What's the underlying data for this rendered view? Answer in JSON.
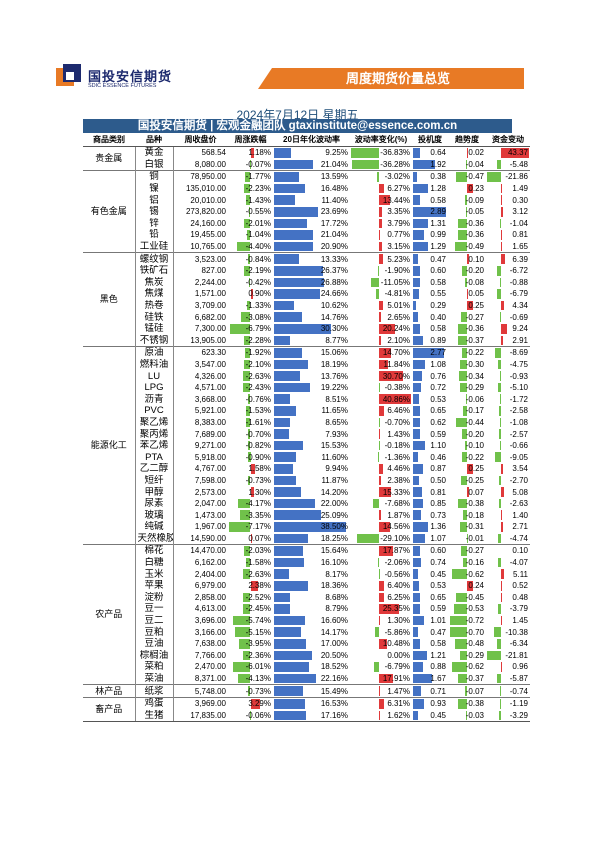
{
  "header": {
    "logo_cn": "国投安信期货",
    "logo_en": "SDIC ESSENCE FUTURES",
    "banner": "周度期货价量总览",
    "date": "2024年7月12日 星期五",
    "subtitle": "国投安信期货 | 宏观金融团队 gtaxinstitute@essence.com.cn"
  },
  "columns": [
    "商品类别",
    "品种",
    "周收盘价",
    "周涨跌幅",
    "20日年化波动率",
    "波动率变化(%)",
    "投机度",
    "趋势度",
    "资金变动"
  ],
  "rows": [
    {
      "cat": "贵金属",
      "name": "黄金",
      "close": "568.54",
      "chg": "1.18%",
      "chgv": 1.18,
      "vol": "9.25%",
      "volv": 9.25,
      "vchg": "-36.83%",
      "vchgv": -36.83,
      "spec": "0.64",
      "specv": 0.64,
      "trend": "0.02",
      "trendv": 0.02,
      "flow": "43.37",
      "flowv": 43.37,
      "grp": true
    },
    {
      "cat": "",
      "name": "白银",
      "close": "8,080.00",
      "chg": "-0.07%",
      "chgv": -0.07,
      "vol": "21.04%",
      "volv": 21.04,
      "vchg": "-36.28%",
      "vchgv": -36.28,
      "spec": "1.92",
      "specv": 1.92,
      "trend": "-0.04",
      "trendv": -0.04,
      "flow": "-5.48",
      "flowv": -5.48
    },
    {
      "cat": "有色金属",
      "name": "铜",
      "close": "78,950.00",
      "chg": "-1.77%",
      "chgv": -1.77,
      "vol": "13.59%",
      "volv": 13.59,
      "vchg": "-3.02%",
      "vchgv": -3.02,
      "spec": "0.38",
      "specv": 0.38,
      "trend": "-0.47",
      "trendv": -0.47,
      "flow": "-21.86",
      "flowv": -21.86,
      "grp": true
    },
    {
      "cat": "",
      "name": "镍",
      "close": "135,010.00",
      "chg": "-2.23%",
      "chgv": -2.23,
      "vol": "16.48%",
      "volv": 16.48,
      "vchg": "6.27%",
      "vchgv": 6.27,
      "spec": "1.28",
      "specv": 1.28,
      "trend": "0.23",
      "trendv": 0.23,
      "flow": "1.49",
      "flowv": 1.49
    },
    {
      "cat": "",
      "name": "铝",
      "close": "20,010.00",
      "chg": "-1.43%",
      "chgv": -1.43,
      "vol": "11.40%",
      "volv": 11.4,
      "vchg": "13.44%",
      "vchgv": 13.44,
      "spec": "0.58",
      "specv": 0.58,
      "trend": "-0.09",
      "trendv": -0.09,
      "flow": "0.30",
      "flowv": 0.3
    },
    {
      "cat": "",
      "name": "锡",
      "close": "273,820.00",
      "chg": "-0.55%",
      "chgv": -0.55,
      "vol": "23.69%",
      "volv": 23.69,
      "vchg": "3.35%",
      "vchgv": 3.35,
      "spec": "2.89",
      "specv": 2.89,
      "trend": "-0.05",
      "trendv": -0.05,
      "flow": "3.12",
      "flowv": 3.12
    },
    {
      "cat": "",
      "name": "锌",
      "close": "24,160.00",
      "chg": "-2.01%",
      "chgv": -2.01,
      "vol": "17.72%",
      "volv": 17.72,
      "vchg": "3.79%",
      "vchgv": 3.79,
      "spec": "1.31",
      "specv": 1.31,
      "trend": "-0.36",
      "trendv": -0.36,
      "flow": "-1.04",
      "flowv": -1.04
    },
    {
      "cat": "",
      "name": "铅",
      "close": "19,455.00",
      "chg": "-1.04%",
      "chgv": -1.04,
      "vol": "21.04%",
      "volv": 21.04,
      "vchg": "0.77%",
      "vchgv": 0.77,
      "spec": "0.99",
      "specv": 0.99,
      "trend": "-0.36",
      "trendv": -0.36,
      "flow": "0.81",
      "flowv": 0.81
    },
    {
      "cat": "",
      "name": "工业硅",
      "close": "10,765.00",
      "chg": "-4.40%",
      "chgv": -4.4,
      "vol": "20.90%",
      "volv": 20.9,
      "vchg": "3.15%",
      "vchgv": 3.15,
      "spec": "1.29",
      "specv": 1.29,
      "trend": "-0.49",
      "trendv": -0.49,
      "flow": "1.65",
      "flowv": 1.65
    },
    {
      "cat": "黑色",
      "name": "螺纹钢",
      "close": "3,523.00",
      "chg": "-0.84%",
      "chgv": -0.84,
      "vol": "13.33%",
      "volv": 13.33,
      "vchg": "5.23%",
      "vchgv": 5.23,
      "spec": "0.47",
      "specv": 0.47,
      "trend": "0.10",
      "trendv": 0.1,
      "flow": "6.39",
      "flowv": 6.39,
      "grp": true
    },
    {
      "cat": "",
      "name": "铁矿石",
      "close": "827.00",
      "chg": "-2.19%",
      "chgv": -2.19,
      "vol": "26.37%",
      "volv": 26.37,
      "vchg": "-1.90%",
      "vchgv": -1.9,
      "spec": "0.60",
      "specv": 0.6,
      "trend": "-0.20",
      "trendv": -0.2,
      "flow": "-6.72",
      "flowv": -6.72
    },
    {
      "cat": "",
      "name": "焦炭",
      "close": "2,244.00",
      "chg": "-0.42%",
      "chgv": -0.42,
      "vol": "26.88%",
      "volv": 26.88,
      "vchg": "-11.05%",
      "vchgv": -11.05,
      "spec": "0.58",
      "specv": 0.58,
      "trend": "-0.08",
      "trendv": -0.08,
      "flow": "-0.88",
      "flowv": -0.88
    },
    {
      "cat": "",
      "name": "焦煤",
      "close": "1,571.00",
      "chg": "0.90%",
      "chgv": 0.9,
      "vol": "24.66%",
      "volv": 24.66,
      "vchg": "-4.81%",
      "vchgv": -4.81,
      "spec": "0.55",
      "specv": 0.55,
      "trend": "0.05",
      "trendv": 0.05,
      "flow": "-6.79",
      "flowv": -6.79
    },
    {
      "cat": "",
      "name": "热卷",
      "close": "3,709.00",
      "chg": "-1.33%",
      "chgv": -1.33,
      "vol": "10.62%",
      "volv": 10.62,
      "vchg": "5.01%",
      "vchgv": 5.01,
      "spec": "0.29",
      "specv": 0.29,
      "trend": "0.25",
      "trendv": 0.25,
      "flow": "4.34",
      "flowv": 4.34
    },
    {
      "cat": "",
      "name": "硅铁",
      "close": "6,682.00",
      "chg": "-3.08%",
      "chgv": -3.08,
      "vol": "14.76%",
      "volv": 14.76,
      "vchg": "2.65%",
      "vchgv": 2.65,
      "spec": "0.40",
      "specv": 0.4,
      "trend": "-0.27",
      "trendv": -0.27,
      "flow": "-0.69",
      "flowv": -0.69
    },
    {
      "cat": "",
      "name": "锰硅",
      "close": "7,300.00",
      "chg": "-6.79%",
      "chgv": -6.79,
      "vol": "30.30%",
      "volv": 30.3,
      "vchg": "20.24%",
      "vchgv": 20.24,
      "spec": "0.58",
      "specv": 0.58,
      "trend": "-0.36",
      "trendv": -0.36,
      "flow": "9.24",
      "flowv": 9.24
    },
    {
      "cat": "",
      "name": "不锈钢",
      "close": "13,905.00",
      "chg": "-2.28%",
      "chgv": -2.28,
      "vol": "8.77%",
      "volv": 8.77,
      "vchg": "2.10%",
      "vchgv": 2.1,
      "spec": "0.89",
      "specv": 0.89,
      "trend": "-0.37",
      "trendv": -0.37,
      "flow": "2.91",
      "flowv": 2.91
    },
    {
      "cat": "能源化工",
      "name": "原油",
      "close": "623.30",
      "chg": "-1.92%",
      "chgv": -1.92,
      "vol": "15.06%",
      "volv": 15.06,
      "vchg": "14.70%",
      "vchgv": 14.7,
      "spec": "2.77",
      "specv": 2.77,
      "trend": "-0.22",
      "trendv": -0.22,
      "flow": "-8.69",
      "flowv": -8.69,
      "grp": true
    },
    {
      "cat": "",
      "name": "燃料油",
      "close": "3,547.00",
      "chg": "-2.10%",
      "chgv": -2.1,
      "vol": "18.19%",
      "volv": 18.19,
      "vchg": "11.84%",
      "vchgv": 11.84,
      "spec": "1.08",
      "specv": 1.08,
      "trend": "-0.30",
      "trendv": -0.3,
      "flow": "-4.75",
      "flowv": -4.75
    },
    {
      "cat": "",
      "name": "LU",
      "close": "4,326.00",
      "chg": "-2.63%",
      "chgv": -2.63,
      "vol": "13.76%",
      "volv": 13.76,
      "vchg": "30.70%",
      "vchgv": 30.7,
      "spec": "0.76",
      "specv": 0.76,
      "trend": "-0.34",
      "trendv": -0.34,
      "flow": "-0.93",
      "flowv": -0.93
    },
    {
      "cat": "",
      "name": "LPG",
      "close": "4,571.00",
      "chg": "-2.43%",
      "chgv": -2.43,
      "vol": "19.22%",
      "volv": 19.22,
      "vchg": "-0.38%",
      "vchgv": -0.38,
      "spec": "0.72",
      "specv": 0.72,
      "trend": "-0.29",
      "trendv": -0.29,
      "flow": "-5.10",
      "flowv": -5.1
    },
    {
      "cat": "",
      "name": "沥青",
      "close": "3,668.00",
      "chg": "-0.76%",
      "chgv": -0.76,
      "vol": "8.51%",
      "volv": 8.51,
      "vchg": "40.86%",
      "vchgv": 40.86,
      "spec": "0.53",
      "specv": 0.53,
      "trend": "-0.06",
      "trendv": -0.06,
      "flow": "-1.72",
      "flowv": -1.72
    },
    {
      "cat": "",
      "name": "PVC",
      "close": "5,921.00",
      "chg": "-1.53%",
      "chgv": -1.53,
      "vol": "11.65%",
      "volv": 11.65,
      "vchg": "6.46%",
      "vchgv": 6.46,
      "spec": "0.65",
      "specv": 0.65,
      "trend": "-0.17",
      "trendv": -0.17,
      "flow": "-2.58",
      "flowv": -2.58
    },
    {
      "cat": "",
      "name": "聚乙烯",
      "close": "8,383.00",
      "chg": "-1.61%",
      "chgv": -1.61,
      "vol": "8.65%",
      "volv": 8.65,
      "vchg": "-0.70%",
      "vchgv": -0.7,
      "spec": "0.62",
      "specv": 0.62,
      "trend": "-0.44",
      "trendv": -0.44,
      "flow": "-1.08",
      "flowv": -1.08
    },
    {
      "cat": "",
      "name": "聚丙烯",
      "close": "7,689.00",
      "chg": "-0.70%",
      "chgv": -0.7,
      "vol": "7.93%",
      "volv": 7.93,
      "vchg": "1.43%",
      "vchgv": 1.43,
      "spec": "0.59",
      "specv": 0.59,
      "trend": "-0.20",
      "trendv": -0.2,
      "flow": "-2.57",
      "flowv": -2.57
    },
    {
      "cat": "",
      "name": "苯乙烯",
      "close": "9,271.00",
      "chg": "-0.82%",
      "chgv": -0.82,
      "vol": "15.53%",
      "volv": 15.53,
      "vchg": "-0.18%",
      "vchgv": -0.18,
      "spec": "1.10",
      "specv": 1.1,
      "trend": "-0.10",
      "trendv": -0.1,
      "flow": "-0.66",
      "flowv": -0.66
    },
    {
      "cat": "",
      "name": "PTA",
      "close": "5,918.00",
      "chg": "-0.90%",
      "chgv": -0.9,
      "vol": "11.60%",
      "volv": 11.6,
      "vchg": "-1.36%",
      "vchgv": -1.36,
      "spec": "0.46",
      "specv": 0.46,
      "trend": "-0.22",
      "trendv": -0.22,
      "flow": "-9.05",
      "flowv": -9.05
    },
    {
      "cat": "",
      "name": "乙二醇",
      "close": "4,767.00",
      "chg": "1.58%",
      "chgv": 1.58,
      "vol": "9.94%",
      "volv": 9.94,
      "vchg": "4.46%",
      "vchgv": 4.46,
      "spec": "0.87",
      "specv": 0.87,
      "trend": "0.25",
      "trendv": 0.25,
      "flow": "3.54",
      "flowv": 3.54
    },
    {
      "cat": "",
      "name": "短纤",
      "close": "7,598.00",
      "chg": "-0.73%",
      "chgv": -0.73,
      "vol": "11.87%",
      "volv": 11.87,
      "vchg": "2.38%",
      "vchgv": 2.38,
      "spec": "0.50",
      "specv": 0.5,
      "trend": "-0.25",
      "trendv": -0.25,
      "flow": "-2.70",
      "flowv": -2.7
    },
    {
      "cat": "",
      "name": "甲醇",
      "close": "2,573.00",
      "chg": "1.30%",
      "chgv": 1.3,
      "vol": "14.20%",
      "volv": 14.2,
      "vchg": "15.33%",
      "vchgv": 15.33,
      "spec": "0.81",
      "specv": 0.81,
      "trend": "0.07",
      "trendv": 0.07,
      "flow": "5.08",
      "flowv": 5.08
    },
    {
      "cat": "",
      "name": "尿素",
      "close": "2,047.00",
      "chg": "-4.17%",
      "chgv": -4.17,
      "vol": "22.00%",
      "volv": 22.0,
      "vchg": "-7.68%",
      "vchgv": -7.68,
      "spec": "0.85",
      "specv": 0.85,
      "trend": "-0.38",
      "trendv": -0.38,
      "flow": "-2.63",
      "flowv": -2.63
    },
    {
      "cat": "",
      "name": "玻璃",
      "close": "1,473.00",
      "chg": "-3.35%",
      "chgv": -3.35,
      "vol": "25.09%",
      "volv": 25.09,
      "vchg": "1.87%",
      "vchgv": 1.87,
      "spec": "0.73",
      "specv": 0.73,
      "trend": "-0.18",
      "trendv": -0.18,
      "flow": "1.40",
      "flowv": 1.4
    },
    {
      "cat": "",
      "name": "纯碱",
      "close": "1,967.00",
      "chg": "-7.17%",
      "chgv": -7.17,
      "vol": "38.50%",
      "volv": 38.5,
      "vchg": "14.56%",
      "vchgv": 14.56,
      "spec": "1.36",
      "specv": 1.36,
      "trend": "-0.31",
      "trendv": -0.31,
      "flow": "2.71",
      "flowv": 2.71
    },
    {
      "cat": "",
      "name": "天然橡胶",
      "close": "14,590.00",
      "chg": "0.07%",
      "chgv": 0.07,
      "vol": "18.25%",
      "volv": 18.25,
      "vchg": "-29.10%",
      "vchgv": -29.1,
      "spec": "1.07",
      "specv": 1.07,
      "trend": "-0.01",
      "trendv": -0.01,
      "flow": "-4.74",
      "flowv": -4.74
    },
    {
      "cat": "农产品",
      "name": "棉花",
      "close": "14,470.00",
      "chg": "-2.03%",
      "chgv": -2.03,
      "vol": "15.64%",
      "volv": 15.64,
      "vchg": "17.87%",
      "vchgv": 17.87,
      "spec": "0.60",
      "specv": 0.6,
      "trend": "-0.27",
      "trendv": -0.27,
      "flow": "0.10",
      "flowv": 0.1,
      "grp": true
    },
    {
      "cat": "",
      "name": "白糖",
      "close": "6,162.00",
      "chg": "-1.58%",
      "chgv": -1.58,
      "vol": "16.10%",
      "volv": 16.1,
      "vchg": "-2.06%",
      "vchgv": -2.06,
      "spec": "0.74",
      "specv": 0.74,
      "trend": "-0.16",
      "trendv": -0.16,
      "flow": "-4.07",
      "flowv": -4.07
    },
    {
      "cat": "",
      "name": "玉米",
      "close": "2,404.00",
      "chg": "-2.63%",
      "chgv": -2.63,
      "vol": "8.17%",
      "volv": 8.17,
      "vchg": "-0.56%",
      "vchgv": -0.56,
      "spec": "0.45",
      "specv": 0.45,
      "trend": "-0.62",
      "trendv": -0.62,
      "flow": "5.11",
      "flowv": 5.11
    },
    {
      "cat": "",
      "name": "苹果",
      "close": "6,979.00",
      "chg": "2.38%",
      "chgv": 2.38,
      "vol": "18.36%",
      "volv": 18.36,
      "vchg": "6.40%",
      "vchgv": 6.4,
      "spec": "0.53",
      "specv": 0.53,
      "trend": "0.24",
      "trendv": 0.24,
      "flow": "0.52",
      "flowv": 0.52
    },
    {
      "cat": "",
      "name": "淀粉",
      "close": "2,858.00",
      "chg": "-2.52%",
      "chgv": -2.52,
      "vol": "8.68%",
      "volv": 8.68,
      "vchg": "6.25%",
      "vchgv": 6.25,
      "spec": "0.65",
      "specv": 0.65,
      "trend": "-0.45",
      "trendv": -0.45,
      "flow": "0.48",
      "flowv": 0.48
    },
    {
      "cat": "",
      "name": "豆一",
      "close": "4,613.00",
      "chg": "-2.45%",
      "chgv": -2.45,
      "vol": "8.79%",
      "volv": 8.79,
      "vchg": "25.35%",
      "vchgv": 25.35,
      "spec": "0.59",
      "specv": 0.59,
      "trend": "-0.53",
      "trendv": -0.53,
      "flow": "-3.79",
      "flowv": -3.79
    },
    {
      "cat": "",
      "name": "豆二",
      "close": "3,696.00",
      "chg": "-5.74%",
      "chgv": -5.74,
      "vol": "16.60%",
      "volv": 16.6,
      "vchg": "1.30%",
      "vchgv": 1.3,
      "spec": "1.01",
      "specv": 1.01,
      "trend": "-0.72",
      "trendv": -0.72,
      "flow": "1.45",
      "flowv": 1.45
    },
    {
      "cat": "",
      "name": "豆粕",
      "close": "3,166.00",
      "chg": "-5.15%",
      "chgv": -5.15,
      "vol": "14.17%",
      "volv": 14.17,
      "vchg": "-5.86%",
      "vchgv": -5.86,
      "spec": "0.47",
      "specv": 0.47,
      "trend": "-0.70",
      "trendv": -0.7,
      "flow": "-10.38",
      "flowv": -10.38
    },
    {
      "cat": "",
      "name": "豆油",
      "close": "7,638.00",
      "chg": "-3.95%",
      "chgv": -3.95,
      "vol": "17.00%",
      "volv": 17.0,
      "vchg": "10.48%",
      "vchgv": 10.48,
      "spec": "0.58",
      "specv": 0.58,
      "trend": "-0.48",
      "trendv": -0.48,
      "flow": "-6.34",
      "flowv": -6.34
    },
    {
      "cat": "",
      "name": "棕榈油",
      "close": "7,766.00",
      "chg": "-2.36%",
      "chgv": -2.36,
      "vol": "20.50%",
      "volv": 20.5,
      "vchg": "0.00%",
      "vchgv": 0.0,
      "spec": "1.21",
      "specv": 1.21,
      "trend": "-0.29",
      "trendv": -0.29,
      "flow": "-21.81",
      "flowv": -21.81
    },
    {
      "cat": "",
      "name": "菜粕",
      "close": "2,470.00",
      "chg": "-6.01%",
      "chgv": -6.01,
      "vol": "18.52%",
      "volv": 18.52,
      "vchg": "-6.79%",
      "vchgv": -6.79,
      "spec": "0.88",
      "specv": 0.88,
      "trend": "-0.62",
      "trendv": -0.62,
      "flow": "0.96",
      "flowv": 0.96
    },
    {
      "cat": "",
      "name": "菜油",
      "close": "8,371.00",
      "chg": "-4.13%",
      "chgv": -4.13,
      "vol": "22.16%",
      "volv": 22.16,
      "vchg": "17.91%",
      "vchgv": 17.91,
      "spec": "1.67",
      "specv": 1.67,
      "trend": "-0.37",
      "trendv": -0.37,
      "flow": "-5.87",
      "flowv": -5.87
    },
    {
      "cat": "林产品",
      "name": "纸浆",
      "close": "5,748.00",
      "chg": "-0.73%",
      "chgv": -0.73,
      "vol": "15.49%",
      "volv": 15.49,
      "vchg": "1.47%",
      "vchgv": 1.47,
      "spec": "0.71",
      "specv": 0.71,
      "trend": "-0.07",
      "trendv": -0.07,
      "flow": "-0.74",
      "flowv": -0.74,
      "grp": true
    },
    {
      "cat": "畜产品",
      "name": "鸡蛋",
      "close": "3,969.00",
      "chg": "3.29%",
      "chgv": 3.29,
      "vol": "16.53%",
      "volv": 16.53,
      "vchg": "6.31%",
      "vchgv": 6.31,
      "spec": "0.93",
      "specv": 0.93,
      "trend": "-0.38",
      "trendv": -0.38,
      "flow": "-1.19",
      "flowv": -1.19,
      "grp": true
    },
    {
      "cat": "",
      "name": "生猪",
      "close": "17,835.00",
      "chg": "-0.06%",
      "chgv": -0.06,
      "vol": "17.16%",
      "volv": 17.16,
      "vchg": "1.62%",
      "vchgv": 1.62,
      "spec": "0.45",
      "specv": 0.45,
      "trend": "-0.03",
      "trendv": -0.03,
      "flow": "-3.29",
      "flowv": -3.29
    }
  ],
  "colors": {
    "pos_bar": "#4472c4",
    "neg_bar": "#70c14a",
    "red_bar": "#e0393a",
    "banner": "#e87a25",
    "subtitle_bg": "#2d5b8c"
  }
}
